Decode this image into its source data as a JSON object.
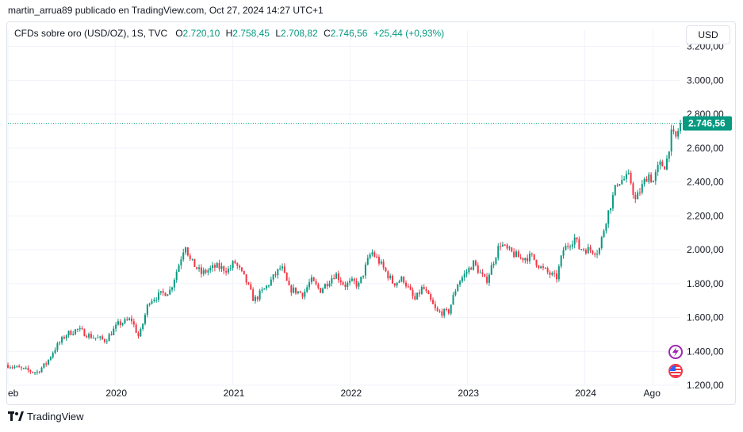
{
  "header": {
    "attribution": "martin_arrua89 publicado en TradingView.com, Oct 27, 2024 14:27 UTC+1"
  },
  "legend": {
    "symbol": "CFDs sobre oro (USD/OZ), 1S, TVC",
    "o_label": "O",
    "o_value": "2.720,10",
    "h_label": "H",
    "h_value": "2.758,45",
    "l_label": "L",
    "l_value": "2.708,82",
    "c_label": "C",
    "c_value": "2.746,56",
    "change": "+25,44 (+0,93%)"
  },
  "currency_button": "USD",
  "last_price_label": "2.746,56",
  "footer": {
    "brand": "TradingView"
  },
  "icons": {
    "lightning": "lightning-icon",
    "flag": "us-flag-icon",
    "logo": "tradingview-logo-icon"
  },
  "colors": {
    "up": "#089981",
    "down": "#f23645",
    "grid": "#f0f3fa",
    "price_line": "#089981"
  },
  "chart_data": {
    "type": "candlestick",
    "interval": "1W",
    "ylim": [
      1200,
      3250
    ],
    "y_ticks": [
      1200,
      1400,
      1600,
      1800,
      2000,
      2200,
      2400,
      2600,
      2800,
      3000,
      3200
    ],
    "y_tick_labels": [
      "1.200,00",
      "1.400,00",
      "1.600,00",
      "1.800,00",
      "2.000,00",
      "2.200,00",
      "2.400,00",
      "2.600,00",
      "2.800,00",
      "3.000,00",
      "3.200,00"
    ],
    "x_range": [
      "2019-02-01",
      "2024-10-25"
    ],
    "x_ticks": [
      {
        "date": "2019-02-01",
        "label": "eb"
      },
      {
        "date": "2020-01-01",
        "label": "2020"
      },
      {
        "date": "2021-01-01",
        "label": "2021"
      },
      {
        "date": "2022-01-01",
        "label": "2022"
      },
      {
        "date": "2023-01-01",
        "label": "2023"
      },
      {
        "date": "2024-01-01",
        "label": "2024"
      },
      {
        "date": "2024-08-01",
        "label": "Ago"
      }
    ],
    "last_price": 2746.56,
    "approx_closes": {
      "dates": [
        "2019-02-01",
        "2019-03-15",
        "2019-05-01",
        "2019-06-01",
        "2019-06-25",
        "2019-08-01",
        "2019-09-05",
        "2019-10-15",
        "2019-12-01",
        "2020-01-10",
        "2020-02-20",
        "2020-03-15",
        "2020-04-15",
        "2020-05-15",
        "2020-06-20",
        "2020-07-20",
        "2020-08-06",
        "2020-08-20",
        "2020-09-25",
        "2020-11-09",
        "2020-12-20",
        "2021-01-06",
        "2021-02-10",
        "2021-03-08",
        "2021-04-15",
        "2021-06-01",
        "2021-06-25",
        "2021-08-09",
        "2021-09-01",
        "2021-09-30",
        "2021-11-16",
        "2021-12-15",
        "2022-01-10",
        "2022-01-28",
        "2022-03-08",
        "2022-04-01",
        "2022-05-16",
        "2022-06-15",
        "2022-07-21",
        "2022-08-15",
        "2022-09-28",
        "2022-11-03",
        "2022-12-01",
        "2023-01-20",
        "2023-02-28",
        "2023-04-13",
        "2023-05-03",
        "2023-06-15",
        "2023-07-20",
        "2023-08-20",
        "2023-10-05",
        "2023-10-27",
        "2023-12-01",
        "2023-12-15",
        "2024-02-14",
        "2024-03-08",
        "2024-04-12",
        "2024-05-20",
        "2024-06-07",
        "2024-07-17",
        "2024-08-01",
        "2024-08-20",
        "2024-09-10",
        "2024-09-26",
        "2024-10-11",
        "2024-10-25"
      ],
      "values": [
        1320,
        1295,
        1275,
        1330,
        1410,
        1500,
        1530,
        1490,
        1465,
        1560,
        1590,
        1480,
        1700,
        1730,
        1760,
        1930,
        2040,
        1940,
        1860,
        1900,
        1880,
        1930,
        1820,
        1700,
        1780,
        1900,
        1770,
        1740,
        1820,
        1760,
        1860,
        1790,
        1810,
        1790,
        1990,
        1930,
        1800,
        1830,
        1700,
        1780,
        1630,
        1630,
        1800,
        1920,
        1810,
        2040,
        2000,
        1950,
        1960,
        1890,
        1830,
        2000,
        2070,
        2010,
        1990,
        2180,
        2400,
        2430,
        2290,
        2450,
        2400,
        2500,
        2500,
        2680,
        2660,
        2746.56
      ]
    }
  }
}
